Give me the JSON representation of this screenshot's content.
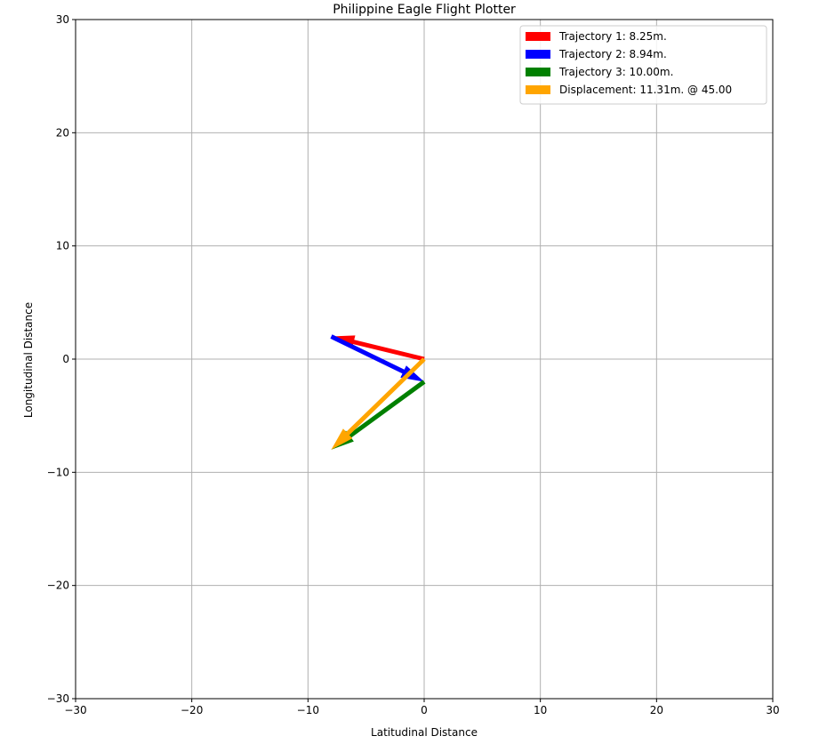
{
  "chart_data": {
    "type": "vector",
    "title": "Philippine Eagle Flight Plotter",
    "xlabel": "Latitudinal Distance",
    "ylabel": "Longitudinal Distance",
    "xlim": [
      -30,
      30
    ],
    "ylim": [
      -30,
      30
    ],
    "xticks": [
      -30,
      -20,
      -10,
      0,
      10,
      20,
      30
    ],
    "yticks": [
      -30,
      -20,
      -10,
      0,
      10,
      20,
      30
    ],
    "xtick_labels": [
      "−30",
      "−20",
      "−10",
      "0",
      "10",
      "20",
      "30"
    ],
    "ytick_labels": [
      "−30",
      "−20",
      "−10",
      "0",
      "10",
      "20",
      "30"
    ],
    "grid": true,
    "legend_position": "top-right",
    "series": [
      {
        "name": "Trajectory 1: 8.25m.",
        "color": "#ff0000",
        "start": [
          0,
          0
        ],
        "end": [
          -8,
          2
        ]
      },
      {
        "name": "Trajectory 2: 8.94m.",
        "color": "#0000ff",
        "start": [
          -8,
          2
        ],
        "end": [
          0,
          -2
        ]
      },
      {
        "name": "Trajectory 3: 10.00m.",
        "color": "#008000",
        "start": [
          0,
          -2
        ],
        "end": [
          -8,
          -8
        ]
      },
      {
        "name": "Displacement: 11.31m. @ 45.00",
        "color": "#ffa500",
        "start": [
          0,
          0
        ],
        "end": [
          -8,
          -8
        ]
      }
    ]
  }
}
